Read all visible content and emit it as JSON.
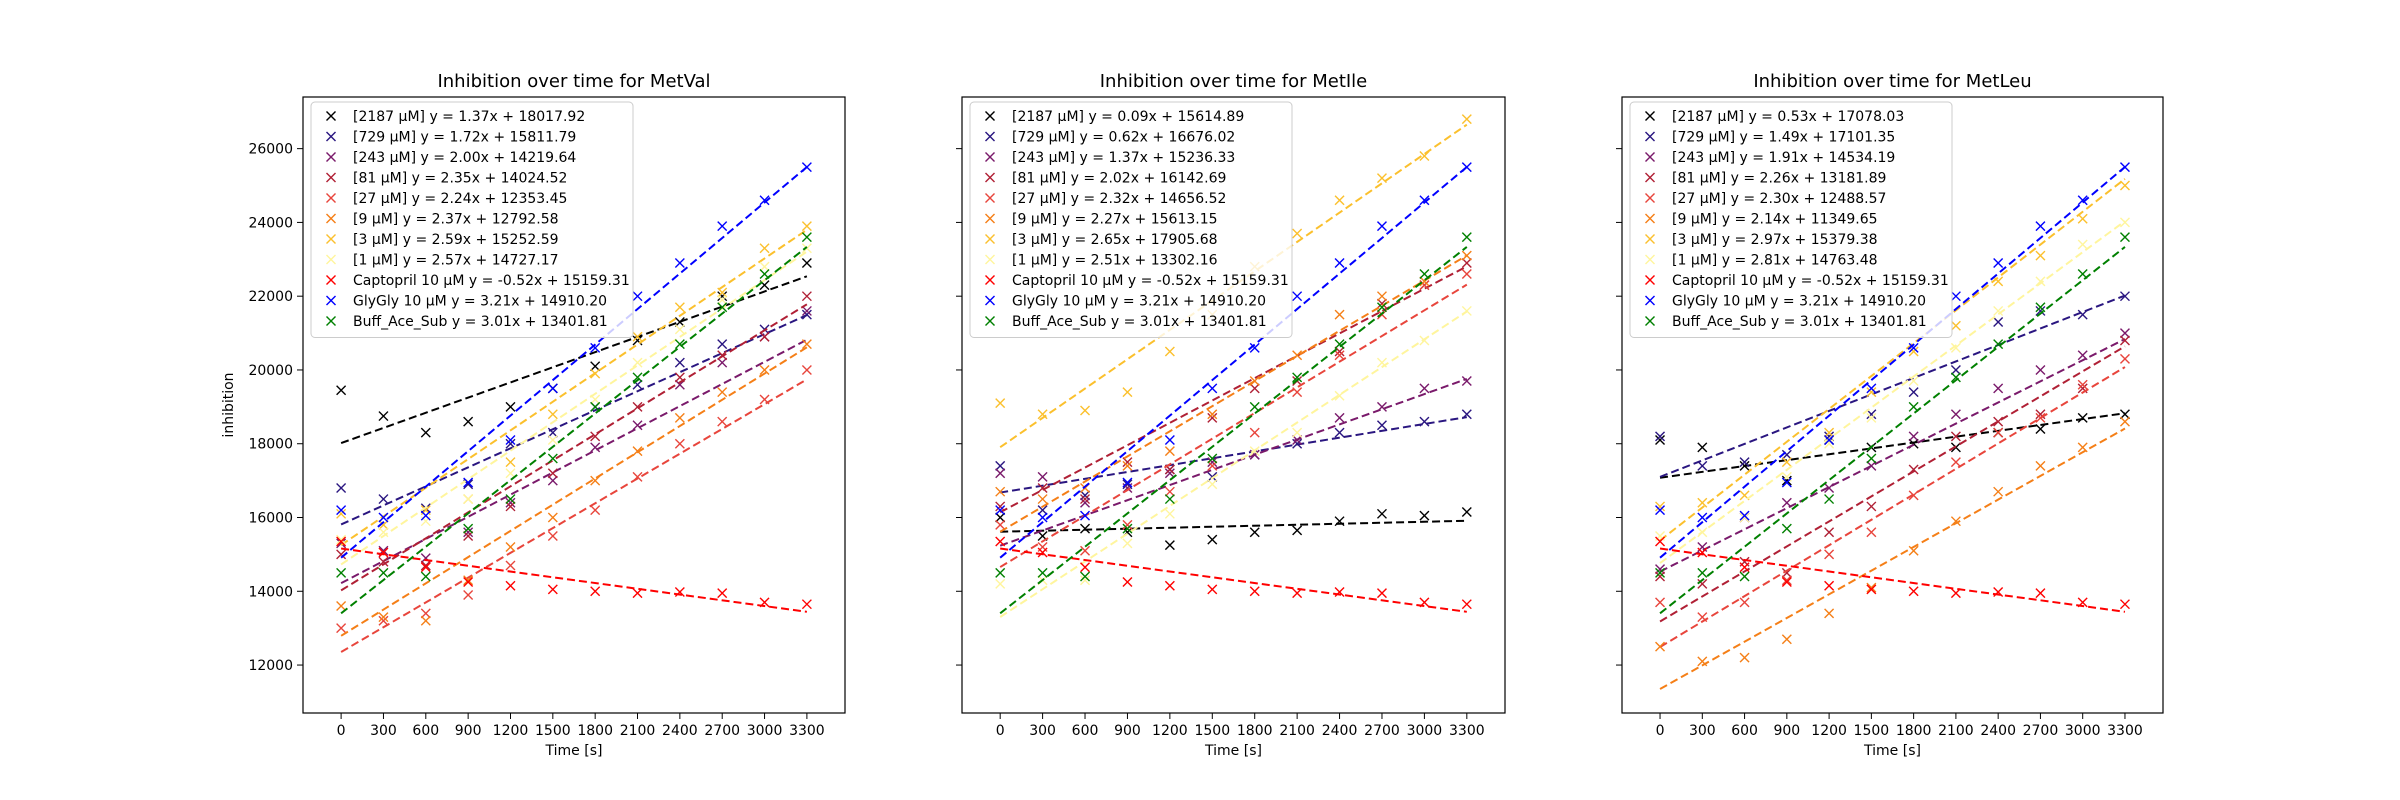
{
  "chart_data": [
    {
      "type": "scatter",
      "title": "Inhibition over time for MetVal",
      "xlabel": "Time [s]",
      "ylabel": "inhibition",
      "xlim": [
        -270,
        3570
      ],
      "ylim": [
        10700,
        27400
      ],
      "xticks": [
        0,
        300,
        600,
        900,
        1200,
        1500,
        1800,
        2100,
        2400,
        2700,
        3000,
        3300
      ],
      "yticks": [
        12000,
        14000,
        16000,
        18000,
        20000,
        22000,
        24000,
        26000
      ],
      "x": [
        0,
        300,
        600,
        900,
        1200,
        1500,
        1800,
        2100,
        2400,
        2700,
        3000,
        3300
      ],
      "legend_position": "top-left",
      "series": [
        {
          "name": "[2187 µM] y = 1.37x + 18017.92",
          "color": "#000000",
          "slope": 1.37,
          "intercept": 18017.92,
          "values": [
            19450,
            18750,
            18300,
            18600,
            19000,
            19500,
            20100,
            20800,
            21300,
            22000,
            22300,
            22900
          ]
        },
        {
          "name": "[729 µM] y = 1.72x + 15811.79",
          "color": "#2a1680",
          "slope": 1.72,
          "intercept": 15811.79,
          "values": [
            16800,
            16500,
            16250,
            16900,
            18000,
            18300,
            19000,
            19600,
            20200,
            20700,
            21100,
            21500
          ]
        },
        {
          "name": "[243 µM] y = 2.00x + 14219.64",
          "color": "#7a1a6b",
          "slope": 2.0,
          "intercept": 14219.64,
          "values": [
            15300,
            15100,
            14900,
            15600,
            16400,
            17000,
            17900,
            18500,
            19600,
            20200,
            20900,
            21600
          ]
        },
        {
          "name": "[81 µM] y = 2.35x + 14024.52",
          "color": "#b02035",
          "slope": 2.35,
          "intercept": 14024.52,
          "values": [
            15000,
            14800,
            14700,
            15500,
            16300,
            17200,
            18200,
            19000,
            19800,
            20400,
            20900,
            22000
          ]
        },
        {
          "name": "[27 µM] y = 2.24x + 12353.45",
          "color": "#e8453c",
          "slope": 2.24,
          "intercept": 12353.45,
          "values": [
            13000,
            13200,
            13400,
            13900,
            14700,
            15500,
            16200,
            17100,
            18000,
            18600,
            19200,
            20000
          ]
        },
        {
          "name": "[9 µM] y = 2.37x + 12792.58",
          "color": "#f57f17",
          "slope": 2.37,
          "intercept": 12792.58,
          "values": [
            13600,
            13300,
            13200,
            14300,
            15200,
            16000,
            17000,
            17800,
            18700,
            19400,
            20000,
            20700
          ]
        },
        {
          "name": "[3 µM] y = 2.59x + 15252.59",
          "color": "#fbc02d",
          "slope": 2.59,
          "intercept": 15252.59,
          "values": [
            16100,
            15800,
            16200,
            16500,
            17500,
            18800,
            19900,
            20900,
            21700,
            22100,
            23300,
            23900
          ]
        },
        {
          "name": "[1 µM] y = 2.57x + 14727.17",
          "color": "#fff59d",
          "slope": 2.57,
          "intercept": 14727.17,
          "values": [
            15400,
            15600,
            15900,
            16500,
            17200,
            18100,
            19200,
            20200,
            21100,
            21900,
            22800,
            23300
          ]
        },
        {
          "name": "Captopril 10 µM y = -0.52x + 15159.31",
          "color": "#ff0000",
          "slope": -0.52,
          "intercept": 15159.31,
          "values": [
            15350,
            15050,
            14650,
            14250,
            14150,
            14050,
            14000,
            13950,
            13980,
            13950,
            13700,
            13650
          ]
        },
        {
          "name": "GlyGly 10 µM y = 3.21x + 14910.20",
          "color": "#0000ff",
          "slope": 3.21,
          "intercept": 14910.2,
          "values": [
            16200,
            16000,
            16050,
            16950,
            18100,
            19500,
            20600,
            22000,
            22900,
            23900,
            24600,
            25500
          ]
        },
        {
          "name": "Buff_Ace_Sub y = 3.01x + 13401.81",
          "color": "#008000",
          "slope": 3.01,
          "intercept": 13401.81,
          "values": [
            14500,
            14500,
            14400,
            15700,
            16500,
            17600,
            19000,
            19800,
            20700,
            21700,
            22600,
            23600
          ]
        }
      ]
    },
    {
      "type": "scatter",
      "title": "Inhibition over time for MetIle",
      "xlabel": "Time [s]",
      "ylabel": "",
      "xlim": [
        -270,
        3570
      ],
      "ylim": [
        10700,
        27400
      ],
      "xticks": [
        0,
        300,
        600,
        900,
        1200,
        1500,
        1800,
        2100,
        2400,
        2700,
        3000,
        3300
      ],
      "yticks": [
        12000,
        14000,
        16000,
        18000,
        20000,
        22000,
        24000,
        26000
      ],
      "x": [
        0,
        300,
        600,
        900,
        1200,
        1500,
        1800,
        2100,
        2400,
        2700,
        3000,
        3300
      ],
      "legend_position": "top-left",
      "series": [
        {
          "name": "[2187 µM] y = 0.09x + 15614.89",
          "color": "#000000",
          "slope": 0.09,
          "intercept": 15614.89,
          "values": [
            16000,
            15500,
            15700,
            15600,
            15250,
            15400,
            15600,
            15650,
            15900,
            16100,
            16050,
            16150
          ]
        },
        {
          "name": "[729 µM] y = 0.62x + 16676.02",
          "color": "#2a1680",
          "slope": 0.62,
          "intercept": 16676.02,
          "values": [
            17400,
            16200,
            16600,
            16900,
            17300,
            17100,
            17700,
            18000,
            18300,
            18500,
            18600,
            18800
          ]
        },
        {
          "name": "[243 µM] y = 1.37x + 15236.33",
          "color": "#7a1a6b",
          "slope": 1.37,
          "intercept": 15236.33,
          "values": [
            17200,
            17100,
            16400,
            16800,
            17200,
            17500,
            17700,
            18100,
            18700,
            19000,
            19500,
            19700
          ]
        },
        {
          "name": "[81 µM] y = 2.02x + 16142.69",
          "color": "#b02035",
          "slope": 2.02,
          "intercept": 16142.69,
          "values": [
            16300,
            16800,
            16500,
            17500,
            17300,
            18700,
            19500,
            19700,
            20500,
            21800,
            22300,
            22900
          ]
        },
        {
          "name": "[27 µM] y = 2.32x + 14656.52",
          "color": "#e8453c",
          "slope": 2.32,
          "intercept": 14656.52,
          "values": [
            15800,
            15200,
            15100,
            15800,
            16700,
            17400,
            18300,
            19400,
            20400,
            21500,
            22300,
            22600
          ]
        },
        {
          "name": "[9 µM] y = 2.27x + 15613.15",
          "color": "#f57f17",
          "slope": 2.27,
          "intercept": 15613.15,
          "values": [
            16700,
            16500,
            16800,
            17400,
            17800,
            18800,
            19700,
            20400,
            21500,
            22000,
            22400,
            23100
          ]
        },
        {
          "name": "[3 µM] y = 2.65x + 17905.68",
          "color": "#fbc02d",
          "slope": 2.65,
          "intercept": 17905.68,
          "values": [
            19100,
            18800,
            18900,
            19400,
            20500,
            21500,
            22800,
            23700,
            24600,
            25200,
            25800,
            26800
          ]
        },
        {
          "name": "[1 µM] y = 2.51x + 13302.16",
          "color": "#fff59d",
          "slope": 2.51,
          "intercept": 13302.16,
          "values": [
            14200,
            14300,
            14300,
            15300,
            16100,
            16900,
            17800,
            18300,
            19300,
            20200,
            20800,
            21600
          ]
        },
        {
          "name": "Captopril 10 µM y = -0.52x + 15159.31",
          "color": "#ff0000",
          "slope": -0.52,
          "intercept": 15159.31,
          "values": [
            15350,
            15050,
            14650,
            14250,
            14150,
            14050,
            14000,
            13950,
            13980,
            13950,
            13700,
            13650
          ]
        },
        {
          "name": "GlyGly 10 µM y = 3.21x + 14910.20",
          "color": "#0000ff",
          "slope": 3.21,
          "intercept": 14910.2,
          "values": [
            16200,
            16000,
            16050,
            16950,
            18100,
            19500,
            20600,
            22000,
            22900,
            23900,
            24600,
            25500
          ]
        },
        {
          "name": "Buff_Ace_Sub y = 3.01x + 13401.81",
          "color": "#008000",
          "slope": 3.01,
          "intercept": 13401.81,
          "values": [
            14500,
            14500,
            14400,
            15700,
            16500,
            17600,
            19000,
            19800,
            20700,
            21700,
            22600,
            23600
          ]
        }
      ]
    },
    {
      "type": "scatter",
      "title": "Inhibition over time for MetLeu",
      "xlabel": "Time [s]",
      "ylabel": "",
      "xlim": [
        -270,
        3570
      ],
      "ylim": [
        10700,
        27400
      ],
      "xticks": [
        0,
        300,
        600,
        900,
        1200,
        1500,
        1800,
        2100,
        2400,
        2700,
        3000,
        3300
      ],
      "yticks": [
        12000,
        14000,
        16000,
        18000,
        20000,
        22000,
        24000,
        26000
      ],
      "x": [
        0,
        300,
        600,
        900,
        1200,
        1500,
        1800,
        2100,
        2400,
        2700,
        3000,
        3300
      ],
      "legend_position": "top-left",
      "series": [
        {
          "name": "[2187 µM] y = 0.53x + 17078.03",
          "color": "#000000",
          "slope": 0.53,
          "intercept": 17078.03,
          "values": [
            18100,
            17900,
            17400,
            17000,
            18100,
            17900,
            18000,
            17900,
            18300,
            18400,
            18700,
            18800
          ]
        },
        {
          "name": "[729 µM] y = 1.49x + 17101.35",
          "color": "#2a1680",
          "slope": 1.49,
          "intercept": 17101.35,
          "values": [
            18200,
            17400,
            17500,
            17700,
            18200,
            18800,
            19400,
            20000,
            21300,
            21600,
            21500,
            22000
          ]
        },
        {
          "name": "[243 µM] y = 1.91x + 14534.19",
          "color": "#7a1a6b",
          "slope": 1.91,
          "intercept": 14534.19,
          "values": [
            14600,
            15200,
            16000,
            16400,
            16800,
            17400,
            18200,
            18800,
            19500,
            20000,
            20400,
            21000
          ]
        },
        {
          "name": "[81 µM] y = 2.26x + 13181.89",
          "color": "#b02035",
          "slope": 2.26,
          "intercept": 13181.89,
          "values": [
            14400,
            14200,
            14800,
            14500,
            15600,
            16300,
            17300,
            18200,
            18600,
            18800,
            19500,
            20800
          ]
        },
        {
          "name": "[27 µM] y = 2.30x + 12488.57",
          "color": "#e8453c",
          "slope": 2.3,
          "intercept": 12488.57,
          "values": [
            13700,
            13300,
            13700,
            14300,
            15000,
            15600,
            16600,
            17500,
            18300,
            18700,
            19600,
            20300
          ]
        },
        {
          "name": "[9 µM] y = 2.14x + 11349.65",
          "color": "#f57f17",
          "slope": 2.14,
          "intercept": 11349.65,
          "values": [
            12500,
            12100,
            12200,
            12700,
            13400,
            14100,
            15100,
            15900,
            16700,
            17400,
            17900,
            18600
          ]
        },
        {
          "name": "[3 µM] y = 2.97x + 15379.38",
          "color": "#fbc02d",
          "slope": 2.97,
          "intercept": 15379.38,
          "values": [
            16300,
            16400,
            16600,
            17500,
            18300,
            19400,
            20500,
            21200,
            22400,
            23100,
            24100,
            25000
          ]
        },
        {
          "name": "[1 µM] y = 2.81x + 14763.48",
          "color": "#fff59d",
          "slope": 2.81,
          "intercept": 14763.48,
          "values": [
            15500,
            15600,
            16000,
            17100,
            18000,
            18700,
            19700,
            20600,
            21600,
            22400,
            23400,
            24000
          ]
        },
        {
          "name": "Captopril 10 µM y = -0.52x + 15159.31",
          "color": "#ff0000",
          "slope": -0.52,
          "intercept": 15159.31,
          "values": [
            15350,
            15050,
            14650,
            14250,
            14150,
            14050,
            14000,
            13950,
            13980,
            13950,
            13700,
            13650
          ]
        },
        {
          "name": "GlyGly 10 µM y = 3.21x + 14910.20",
          "color": "#0000ff",
          "slope": 3.21,
          "intercept": 14910.2,
          "values": [
            16200,
            16000,
            16050,
            16950,
            18100,
            19500,
            20600,
            22000,
            22900,
            23900,
            24600,
            25500
          ]
        },
        {
          "name": "Buff_Ace_Sub y = 3.01x + 13401.81",
          "color": "#008000",
          "slope": 3.01,
          "intercept": 13401.81,
          "values": [
            14500,
            14500,
            14400,
            15700,
            16500,
            17600,
            19000,
            19800,
            20700,
            21700,
            22600,
            23600
          ]
        }
      ]
    }
  ]
}
